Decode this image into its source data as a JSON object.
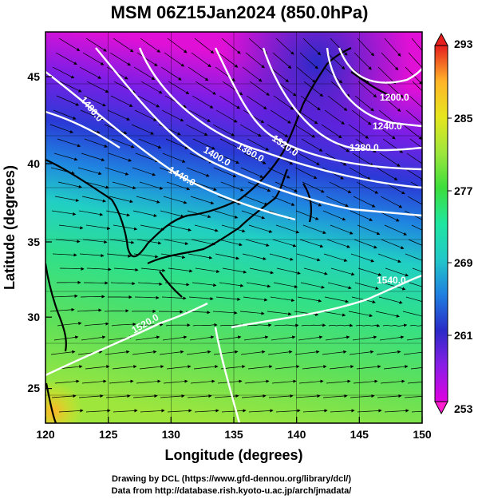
{
  "title": "MSM 06Z15Jan2024 (850.0hPa)",
  "x_axis": {
    "label": "Longitude (degrees)",
    "min": 120,
    "max": 150,
    "ticks": [
      "120",
      "125",
      "130",
      "135",
      "140",
      "145",
      "150"
    ]
  },
  "y_axis": {
    "label": "Latitude  (degrees)",
    "min": 22.4,
    "max": 47.6,
    "ticks": [
      "25",
      "30",
      "35",
      "40",
      "45"
    ]
  },
  "colorbar": {
    "min": 253,
    "max": 293,
    "ticks": [
      "293",
      "285",
      "277",
      "269",
      "261",
      "253"
    ],
    "colors": [
      "#e000e0",
      "#8a1ee6",
      "#2a2ac8",
      "#1f7fe0",
      "#21c8c8",
      "#1fe6a0",
      "#3cde3c",
      "#9fe63c",
      "#e6e61e",
      "#ffb428",
      "#ff5a1e",
      "#e61e1e"
    ]
  },
  "contours": [
    {
      "label": "1200.0"
    },
    {
      "label": "1240.0"
    },
    {
      "label": "1280.0"
    },
    {
      "label": "1320.0"
    },
    {
      "label": "1360.0"
    },
    {
      "label": "1400.0"
    },
    {
      "label": "1440.0"
    },
    {
      "label": "1480.0"
    },
    {
      "label": "1520.0"
    },
    {
      "label": "1540.0"
    }
  ],
  "credits": {
    "line1": "Drawing by DCL (https://www.gfd-dennou.org/library/dcl/)",
    "line2": "Data from http://database.rish.kyoto-u.ac.jp/arch/jmadata/"
  }
}
